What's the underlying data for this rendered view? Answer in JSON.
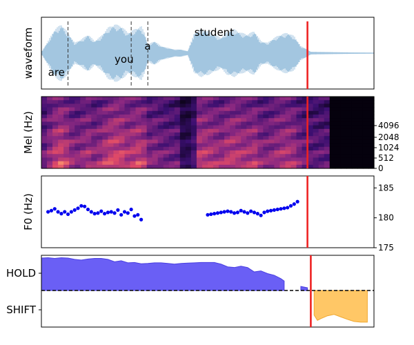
{
  "chart_data": [
    {
      "type": "area",
      "ylabel": "waveform",
      "words": [
        {
          "text": "are",
          "t": 0.02
        },
        {
          "text": "you",
          "t": 0.22
        },
        {
          "text": "a",
          "t": 0.31
        },
        {
          "text": "student",
          "t": 0.46
        }
      ],
      "word_boundaries": [
        0.08,
        0.27,
        0.32
      ],
      "envelope": {
        "t": [
          0.0,
          0.02,
          0.04,
          0.06,
          0.08,
          0.1,
          0.12,
          0.14,
          0.16,
          0.18,
          0.2,
          0.22,
          0.24,
          0.26,
          0.28,
          0.3,
          0.31,
          0.32,
          0.34,
          0.36,
          0.38,
          0.4,
          0.42,
          0.44,
          0.46,
          0.48,
          0.5,
          0.52,
          0.54,
          0.56,
          0.58,
          0.6,
          0.62,
          0.64,
          0.66,
          0.68,
          0.7,
          0.72,
          0.74,
          0.76,
          0.78,
          0.8,
          0.81,
          1.0
        ],
        "amp": [
          0.02,
          0.35,
          0.7,
          0.85,
          0.6,
          0.3,
          0.4,
          0.55,
          0.35,
          0.5,
          0.75,
          0.85,
          0.8,
          0.6,
          0.7,
          0.8,
          0.6,
          0.25,
          0.35,
          0.2,
          0.15,
          0.1,
          0.1,
          0.05,
          0.6,
          0.7,
          0.65,
          0.55,
          0.45,
          0.65,
          0.7,
          0.6,
          0.55,
          0.65,
          0.35,
          0.3,
          0.45,
          0.55,
          0.6,
          0.5,
          0.2,
          0.1,
          0.03,
          0.0
        ]
      }
    },
    {
      "type": "heatmap",
      "ylabel": "Mel (Hz)",
      "yticks": [
        0,
        512,
        1024,
        2048,
        4096
      ],
      "speech_end": 0.86,
      "columns": 60,
      "rows": 20
    },
    {
      "type": "scatter",
      "ylabel": "F0 (Hz)",
      "ylim": [
        175,
        187
      ],
      "yticks": [
        175,
        180,
        185
      ],
      "x": [
        0.02,
        0.03,
        0.04,
        0.05,
        0.06,
        0.07,
        0.08,
        0.09,
        0.1,
        0.11,
        0.12,
        0.13,
        0.14,
        0.15,
        0.16,
        0.17,
        0.18,
        0.19,
        0.2,
        0.21,
        0.22,
        0.23,
        0.24,
        0.25,
        0.26,
        0.27,
        0.28,
        0.29,
        0.3,
        0.5,
        0.51,
        0.52,
        0.53,
        0.54,
        0.55,
        0.56,
        0.57,
        0.58,
        0.59,
        0.6,
        0.61,
        0.62,
        0.63,
        0.64,
        0.65,
        0.66,
        0.67,
        0.68,
        0.69,
        0.7,
        0.71,
        0.72,
        0.73,
        0.74,
        0.75,
        0.76,
        0.77
      ],
      "y": [
        181.0,
        181.2,
        181.5,
        181.0,
        180.7,
        181.0,
        180.6,
        181.0,
        181.3,
        181.6,
        182.0,
        181.9,
        181.4,
        181.0,
        180.7,
        180.8,
        181.1,
        180.7,
        180.9,
        181.0,
        180.8,
        181.3,
        180.5,
        181.0,
        180.8,
        181.4,
        180.3,
        180.5,
        179.7,
        180.5,
        180.6,
        180.7,
        180.8,
        180.9,
        181.0,
        181.1,
        181.0,
        180.8,
        180.9,
        181.2,
        181.0,
        180.8,
        181.1,
        180.9,
        180.7,
        180.4,
        180.9,
        181.1,
        181.2,
        181.3,
        181.4,
        181.5,
        181.6,
        181.7,
        182.0,
        182.3,
        182.7
      ]
    },
    {
      "type": "area",
      "yticks": [
        "HOLD",
        "SHIFT"
      ],
      "hold_color": "#6a5ff5",
      "shift_color": "#ffc766",
      "hold": {
        "x": [
          0.0,
          0.02,
          0.04,
          0.06,
          0.08,
          0.1,
          0.12,
          0.14,
          0.16,
          0.18,
          0.2,
          0.22,
          0.24,
          0.26,
          0.28,
          0.3,
          0.32,
          0.34,
          0.36,
          0.38,
          0.4,
          0.42,
          0.44,
          0.46,
          0.48,
          0.5,
          0.52,
          0.54,
          0.56,
          0.58,
          0.6,
          0.62,
          0.64,
          0.66,
          0.68,
          0.7,
          0.72,
          0.73
        ],
        "y": [
          0.96,
          0.97,
          0.95,
          0.97,
          0.96,
          0.92,
          0.9,
          0.93,
          0.95,
          0.95,
          0.92,
          0.85,
          0.88,
          0.82,
          0.83,
          0.79,
          0.8,
          0.82,
          0.82,
          0.8,
          0.78,
          0.8,
          0.81,
          0.82,
          0.83,
          0.83,
          0.83,
          0.78,
          0.7,
          0.68,
          0.72,
          0.68,
          0.55,
          0.58,
          0.5,
          0.45,
          0.35,
          0.28
        ]
      },
      "hold_tail": {
        "x": [
          0.78,
          0.8
        ],
        "y": [
          0.12,
          0.08
        ]
      },
      "shift": {
        "x": [
          0.82,
          0.83,
          0.84,
          0.86,
          0.88,
          0.9,
          0.92,
          0.94,
          0.96,
          0.98
        ],
        "y": [
          -0.7,
          -0.85,
          -0.8,
          -0.72,
          -0.68,
          -0.75,
          -0.82,
          -0.88,
          -0.9,
          -0.9
        ]
      }
    }
  ],
  "cursor_color": "#ee2222",
  "cursor_t": [
    0.8,
    0.8,
    0.8,
    0.81
  ]
}
